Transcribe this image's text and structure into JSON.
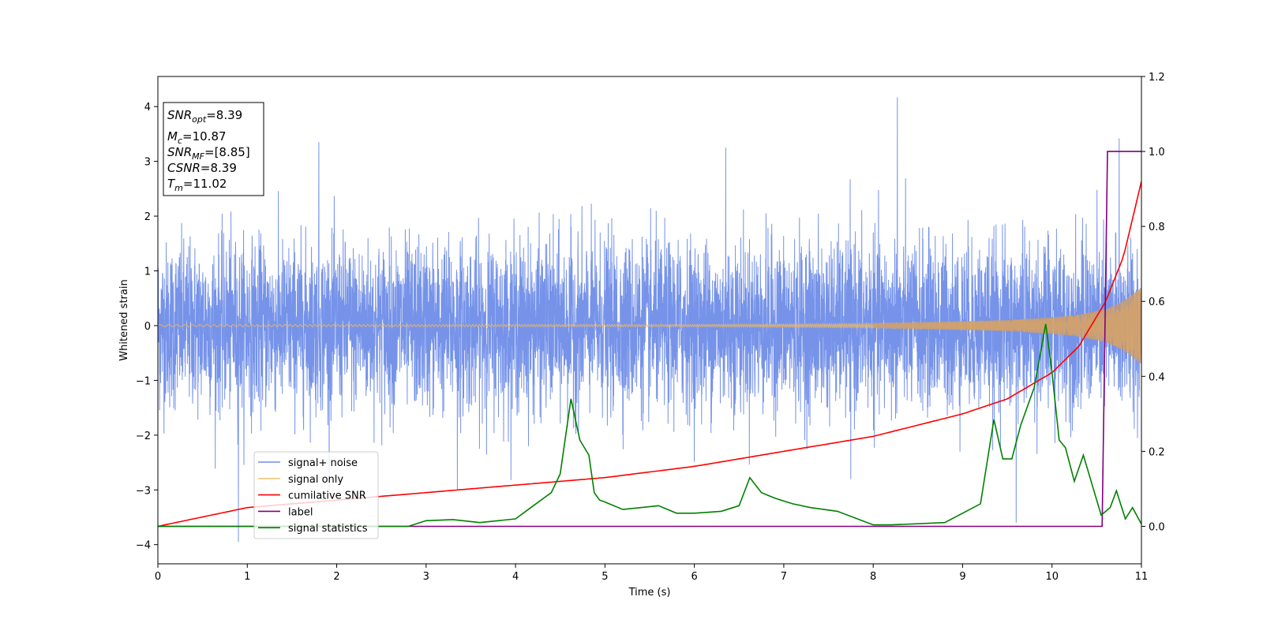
{
  "chart_data": {
    "type": "line",
    "xlabel": "Time (s)",
    "ylabel": "Whitened strain",
    "xlim": [
      0,
      11
    ],
    "ylim": [
      -4.35,
      4.55
    ],
    "y2lim": [
      -0.1,
      1.2
    ],
    "xticks": [
      "0",
      "1",
      "2",
      "3",
      "4",
      "5",
      "6",
      "7",
      "8",
      "9",
      "10",
      "11"
    ],
    "yticks": [
      "4",
      "3",
      "2",
      "1",
      "0",
      "−1",
      "−2",
      "−3",
      "−4"
    ],
    "y2ticks": [
      "1.2",
      "1.0",
      "0.8",
      "0.6",
      "0.4",
      "0.2",
      "0.0"
    ],
    "grid": false,
    "legend_position": "lower-left",
    "series": [
      {
        "name": "signal+ noise",
        "axis": "left",
        "color": "#6f8de8",
        "description_values": {
          "noise_sigma": 0.75,
          "spikes": [
            [
              0.9,
              -3.95
            ],
            [
              1.8,
              3.35
            ],
            [
              8.27,
              4.17
            ],
            [
              9.6,
              -3.6
            ],
            [
              10.75,
              3.42
            ],
            [
              6.35,
              3.25
            ],
            [
              3.35,
              -3.0
            ],
            [
              7.75,
              -2.8
            ]
          ]
        }
      },
      {
        "name": "signal only",
        "axis": "left",
        "color": "#f0b860",
        "envelope": {
          "t": [
            0,
            6,
            8,
            9,
            9.5,
            10,
            10.3,
            10.6,
            10.8,
            11
          ],
          "amp": [
            0.02,
            0.02,
            0.04,
            0.08,
            0.1,
            0.15,
            0.2,
            0.3,
            0.45,
            0.7
          ]
        }
      },
      {
        "name": "cumilative SNR",
        "axis": "right",
        "color": "#ff0000",
        "x": [
          0,
          1,
          2,
          3,
          4,
          5,
          6,
          7,
          8,
          9,
          9.5,
          10,
          10.3,
          10.6,
          10.8,
          11
        ],
        "y": [
          0.0,
          0.05,
          0.07,
          0.09,
          0.11,
          0.13,
          0.16,
          0.2,
          0.24,
          0.3,
          0.34,
          0.41,
          0.48,
          0.6,
          0.72,
          0.92
        ]
      },
      {
        "name": "label",
        "axis": "right",
        "color": "#800080",
        "x": [
          0,
          10.56,
          10.62,
          11
        ],
        "y": [
          0.0,
          0.0,
          1.0,
          1.0
        ]
      },
      {
        "name": "signal statistics",
        "axis": "right",
        "color": "#008000",
        "x": [
          0,
          2.8,
          3.0,
          3.3,
          3.6,
          4.0,
          4.2,
          4.4,
          4.5,
          4.62,
          4.72,
          4.82,
          4.88,
          4.94,
          5.0,
          5.2,
          5.4,
          5.6,
          5.8,
          6.0,
          6.3,
          6.5,
          6.62,
          6.75,
          6.9,
          7.1,
          7.3,
          7.6,
          8.0,
          8.2,
          8.8,
          9.0,
          9.2,
          9.35,
          9.45,
          9.55,
          9.65,
          9.8,
          9.93,
          10.0,
          10.08,
          10.15,
          10.25,
          10.35,
          10.45,
          10.55,
          10.65,
          10.72,
          10.82,
          10.9,
          11.0
        ],
        "y": [
          0.0,
          0.0,
          0.015,
          0.018,
          0.01,
          0.02,
          0.055,
          0.09,
          0.14,
          0.34,
          0.23,
          0.19,
          0.09,
          0.07,
          0.065,
          0.045,
          0.05,
          0.055,
          0.035,
          0.035,
          0.04,
          0.055,
          0.13,
          0.09,
          0.075,
          0.06,
          0.05,
          0.04,
          0.004,
          0.004,
          0.01,
          0.035,
          0.06,
          0.285,
          0.18,
          0.18,
          0.27,
          0.37,
          0.54,
          0.41,
          0.23,
          0.21,
          0.12,
          0.19,
          0.11,
          0.03,
          0.05,
          0.095,
          0.02,
          0.05,
          0.006
        ]
      }
    ],
    "annotation": {
      "lines": [
        {
          "base": "SNR",
          "sub": "opt",
          "value": "=8.39"
        },
        {
          "base": "M",
          "sub": "c",
          "value": "=10.87"
        },
        {
          "base": "SNR",
          "sub": "MF",
          "value": "=[8.85]"
        },
        {
          "base": "CSNR",
          "sub": "",
          "value": "=8.39"
        },
        {
          "base": "T",
          "sub": "m",
          "value": "=11.02"
        }
      ]
    }
  }
}
